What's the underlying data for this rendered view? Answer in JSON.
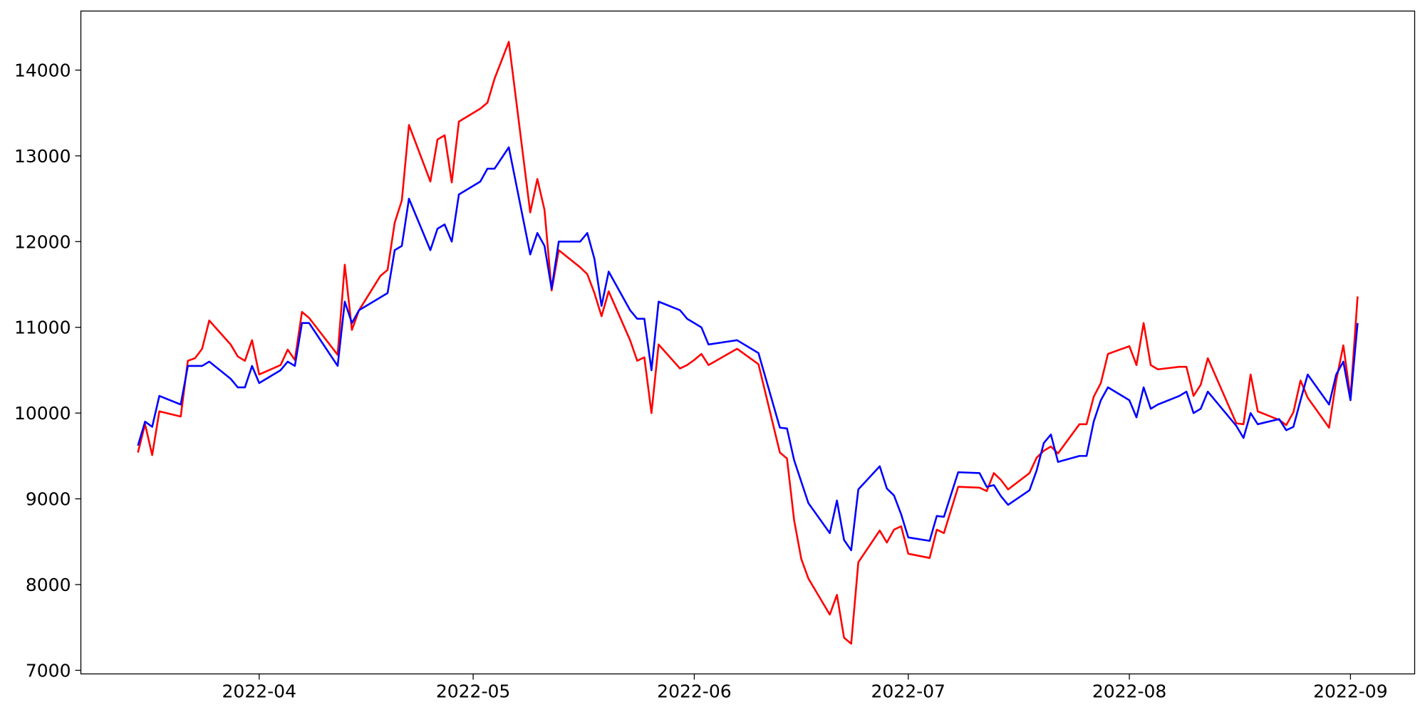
{
  "chart_data": {
    "type": "line",
    "x": [
      "2022-03-15",
      "2022-03-16",
      "2022-03-17",
      "2022-03-18",
      "2022-03-21",
      "2022-03-22",
      "2022-03-23",
      "2022-03-24",
      "2022-03-25",
      "2022-03-28",
      "2022-03-29",
      "2022-03-30",
      "2022-03-31",
      "2022-04-01",
      "2022-04-04",
      "2022-04-05",
      "2022-04-06",
      "2022-04-07",
      "2022-04-08",
      "2022-04-12",
      "2022-04-13",
      "2022-04-14",
      "2022-04-15",
      "2022-04-18",
      "2022-04-19",
      "2022-04-20",
      "2022-04-21",
      "2022-04-22",
      "2022-04-25",
      "2022-04-26",
      "2022-04-27",
      "2022-04-28",
      "2022-04-29",
      "2022-05-02",
      "2022-05-03",
      "2022-05-04",
      "2022-05-06",
      "2022-05-09",
      "2022-05-10",
      "2022-05-11",
      "2022-05-12",
      "2022-05-13",
      "2022-05-16",
      "2022-05-17",
      "2022-05-18",
      "2022-05-19",
      "2022-05-20",
      "2022-05-23",
      "2022-05-24",
      "2022-05-25",
      "2022-05-26",
      "2022-05-27",
      "2022-05-30",
      "2022-05-31",
      "2022-06-01",
      "2022-06-02",
      "2022-06-03",
      "2022-06-07",
      "2022-06-10",
      "2022-06-13",
      "2022-06-14",
      "2022-06-15",
      "2022-06-16",
      "2022-06-17",
      "2022-06-20",
      "2022-06-21",
      "2022-06-22",
      "2022-06-23",
      "2022-06-24",
      "2022-06-27",
      "2022-06-28",
      "2022-06-29",
      "2022-06-30",
      "2022-07-01",
      "2022-07-04",
      "2022-07-05",
      "2022-07-06",
      "2022-07-08",
      "2022-07-11",
      "2022-07-12",
      "2022-07-13",
      "2022-07-14",
      "2022-07-15",
      "2022-07-18",
      "2022-07-19",
      "2022-07-20",
      "2022-07-21",
      "2022-07-22",
      "2022-07-25",
      "2022-07-26",
      "2022-07-27",
      "2022-07-28",
      "2022-07-29",
      "2022-08-01",
      "2022-08-02",
      "2022-08-03",
      "2022-08-04",
      "2022-08-05",
      "2022-08-08",
      "2022-08-09",
      "2022-08-10",
      "2022-08-11",
      "2022-08-12",
      "2022-08-16",
      "2022-08-17",
      "2022-08-18",
      "2022-08-19",
      "2022-08-22",
      "2022-08-23",
      "2022-08-24",
      "2022-08-25",
      "2022-08-26",
      "2022-08-29",
      "2022-08-30",
      "2022-08-31",
      "2022-09-01",
      "2022-09-02"
    ],
    "series": [
      {
        "color": "#ff0000",
        "values": [
          9540,
          9870,
          9510,
          10020,
          9960,
          10610,
          10640,
          10750,
          11080,
          10800,
          10660,
          10610,
          10850,
          10450,
          10560,
          10740,
          10620,
          11180,
          11110,
          10680,
          11730,
          10970,
          11200,
          11600,
          11670,
          12220,
          12480,
          13360,
          12700,
          13190,
          13240,
          12690,
          13400,
          13550,
          13620,
          13900,
          14330,
          12340,
          12730,
          12370,
          11430,
          11900,
          11700,
          11620,
          11400,
          11130,
          11420,
          10850,
          10610,
          10650,
          10000,
          10800,
          10520,
          10560,
          10620,
          10690,
          10560,
          10750,
          10570,
          9540,
          9470,
          8750,
          8300,
          8070,
          7650,
          7880,
          7380,
          7310,
          8260,
          8630,
          8490,
          8640,
          8680,
          8360,
          8310,
          8640,
          8600,
          9140,
          9130,
          9090,
          9300,
          9220,
          9110,
          9300,
          9480,
          9560,
          9610,
          9530,
          9870,
          9870,
          10190,
          10350,
          10690,
          10780,
          10560,
          11050,
          10560,
          10510,
          10540,
          10540,
          10200,
          10330,
          10640,
          9880,
          9870,
          10450,
          10020,
          9920,
          9860,
          10010,
          10380,
          10180,
          9830,
          10380,
          10790,
          10180,
          11360
        ]
      },
      {
        "color": "#0000ff",
        "values": [
          9620,
          9900,
          9840,
          10200,
          10100,
          10550,
          10550,
          10550,
          10600,
          10400,
          10300,
          10300,
          10550,
          10350,
          10500,
          10600,
          10550,
          11050,
          11050,
          10550,
          11300,
          11050,
          11200,
          11350,
          11400,
          11900,
          11950,
          12500,
          11900,
          12150,
          12200,
          12000,
          12550,
          12700,
          12850,
          12850,
          13100,
          11850,
          12100,
          11950,
          11450,
          12000,
          12000,
          12100,
          11800,
          11250,
          11650,
          11200,
          11100,
          11100,
          10500,
          11300,
          11200,
          11100,
          11050,
          11000,
          10800,
          10850,
          10700,
          9830,
          9820,
          9450,
          9200,
          8950,
          8600,
          8980,
          8520,
          8400,
          9110,
          9380,
          9120,
          9040,
          8820,
          8550,
          8510,
          8800,
          8790,
          9310,
          9300,
          9140,
          9160,
          9030,
          8930,
          9100,
          9330,
          9650,
          9750,
          9430,
          9500,
          9500,
          9900,
          10150,
          10300,
          10150,
          9950,
          10300,
          10050,
          10100,
          10200,
          10250,
          10000,
          10050,
          10250,
          9850,
          9710,
          10000,
          9870,
          9930,
          9800,
          9840,
          10150,
          10450,
          10100,
          10450,
          10600,
          10150,
          11050
        ]
      }
    ],
    "xlim": [
      "2022-03-07",
      "2022-09-10"
    ],
    "xticks": [
      {
        "value": "2022-04-01",
        "label": "2022-04"
      },
      {
        "value": "2022-05-01",
        "label": "2022-05"
      },
      {
        "value": "2022-06-01",
        "label": "2022-06"
      },
      {
        "value": "2022-07-01",
        "label": "2022-07"
      },
      {
        "value": "2022-08-01",
        "label": "2022-08"
      },
      {
        "value": "2022-09-01",
        "label": "2022-09"
      }
    ],
    "ylim": [
      6958,
      14689
    ],
    "yticks": [
      7000,
      8000,
      9000,
      10000,
      11000,
      12000,
      13000,
      14000
    ],
    "grid": false
  }
}
